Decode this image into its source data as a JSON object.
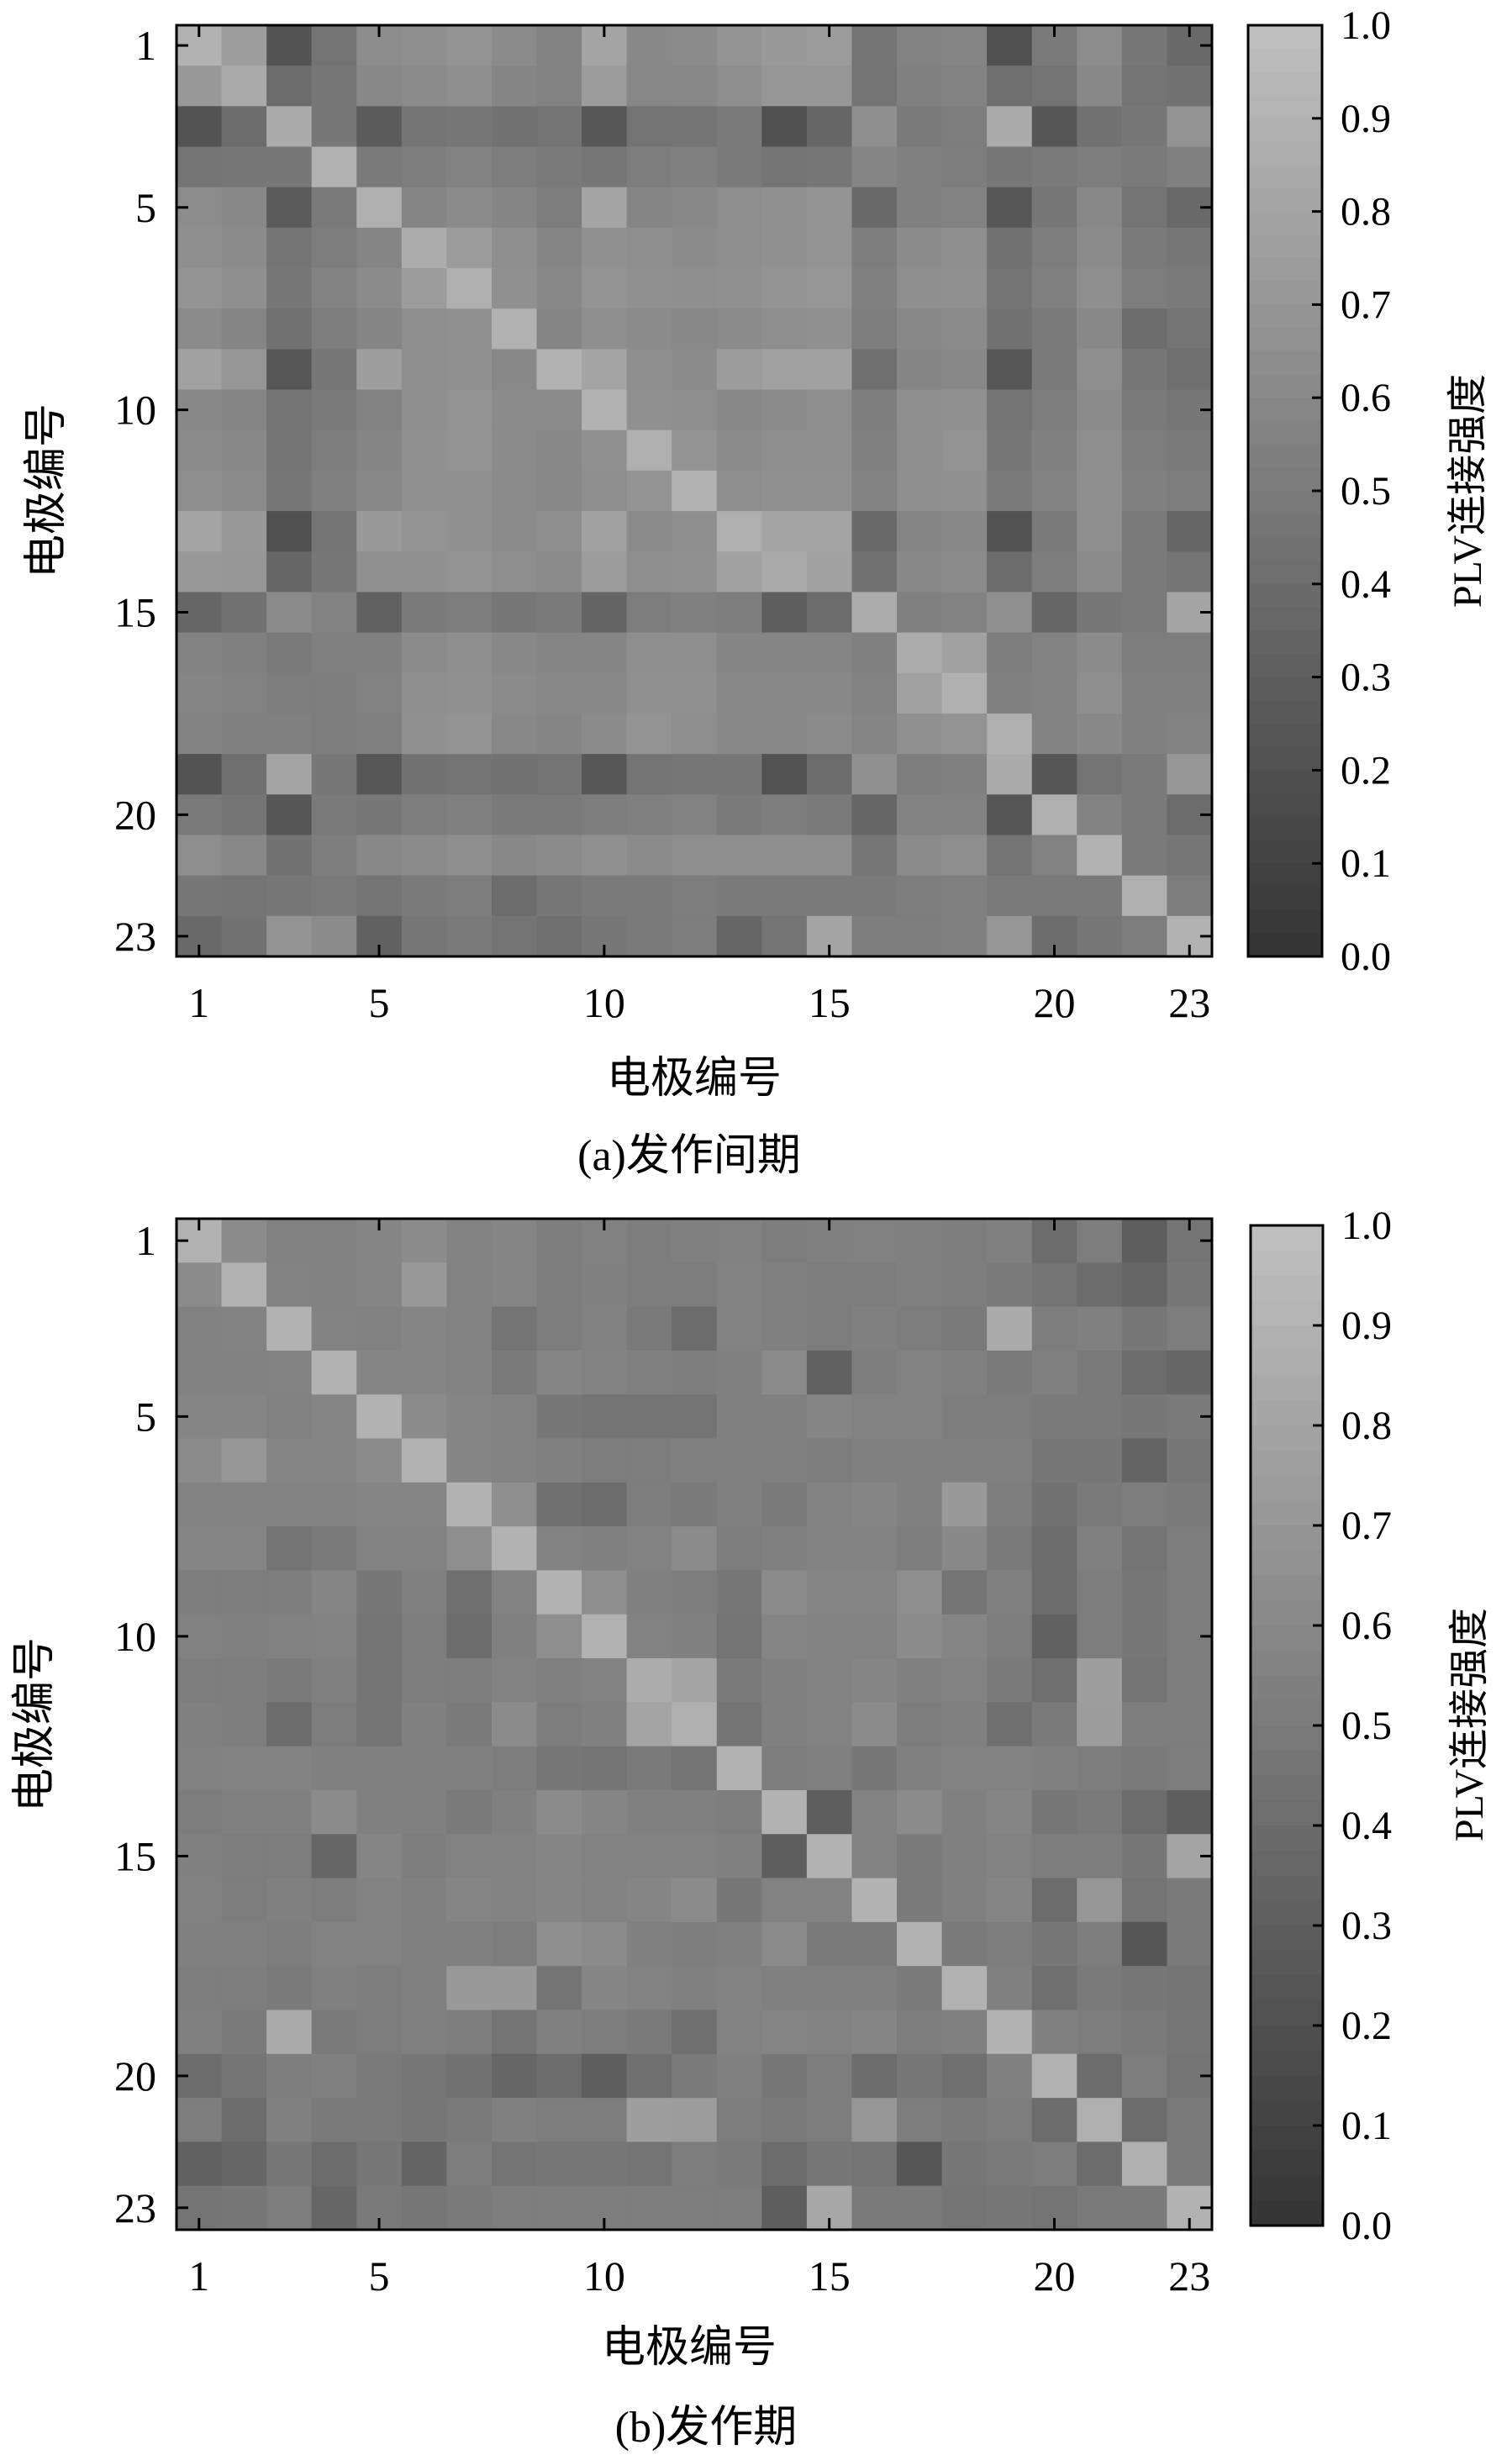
{
  "chart_data": [
    {
      "type": "heatmap",
      "size": 23,
      "xlabel": "电极编号",
      "ylabel": "电极编号",
      "xticks": [
        1,
        5,
        10,
        15,
        20,
        23
      ],
      "yticks": [
        1,
        5,
        10,
        15,
        20,
        23
      ],
      "colorbar": {
        "label": "PLV连接强度",
        "range": [
          0,
          1
        ],
        "ticks": [
          "0.0",
          "0.1",
          "0.2",
          "0.3",
          "0.4",
          "0.5",
          "0.6",
          "0.7",
          "0.8",
          "0.9",
          "1.0"
        ]
      },
      "caption": "(a)发作间期",
      "colormap": "gray",
      "values": [
        [
          0.9,
          0.75,
          0.22,
          0.45,
          0.63,
          0.65,
          0.68,
          0.62,
          0.56,
          0.8,
          0.6,
          0.62,
          0.68,
          0.72,
          0.74,
          0.45,
          0.56,
          0.58,
          0.2,
          0.5,
          0.63,
          0.48,
          0.38
        ],
        [
          0.72,
          0.84,
          0.4,
          0.48,
          0.6,
          0.62,
          0.65,
          0.58,
          0.56,
          0.74,
          0.59,
          0.6,
          0.64,
          0.7,
          0.7,
          0.46,
          0.54,
          0.56,
          0.42,
          0.46,
          0.6,
          0.46,
          0.44
        ],
        [
          0.22,
          0.4,
          0.85,
          0.48,
          0.28,
          0.46,
          0.48,
          0.44,
          0.46,
          0.25,
          0.45,
          0.46,
          0.5,
          0.2,
          0.36,
          0.65,
          0.5,
          0.52,
          0.85,
          0.24,
          0.44,
          0.48,
          0.68
        ],
        [
          0.45,
          0.48,
          0.48,
          0.9,
          0.5,
          0.52,
          0.56,
          0.52,
          0.5,
          0.48,
          0.52,
          0.54,
          0.5,
          0.46,
          0.48,
          0.58,
          0.54,
          0.52,
          0.48,
          0.5,
          0.52,
          0.5,
          0.54
        ],
        [
          0.63,
          0.6,
          0.28,
          0.5,
          0.88,
          0.58,
          0.62,
          0.58,
          0.52,
          0.8,
          0.58,
          0.6,
          0.64,
          0.66,
          0.68,
          0.38,
          0.54,
          0.56,
          0.25,
          0.48,
          0.6,
          0.46,
          0.38
        ],
        [
          0.65,
          0.62,
          0.46,
          0.52,
          0.58,
          0.86,
          0.74,
          0.64,
          0.58,
          0.66,
          0.64,
          0.62,
          0.64,
          0.66,
          0.68,
          0.52,
          0.62,
          0.64,
          0.44,
          0.52,
          0.62,
          0.5,
          0.48
        ],
        [
          0.68,
          0.65,
          0.48,
          0.56,
          0.62,
          0.74,
          0.88,
          0.66,
          0.6,
          0.68,
          0.66,
          0.64,
          0.66,
          0.68,
          0.7,
          0.54,
          0.64,
          0.66,
          0.46,
          0.54,
          0.64,
          0.52,
          0.5
        ],
        [
          0.62,
          0.58,
          0.44,
          0.52,
          0.58,
          0.64,
          0.66,
          0.9,
          0.58,
          0.64,
          0.62,
          0.6,
          0.62,
          0.64,
          0.66,
          0.52,
          0.6,
          0.62,
          0.44,
          0.5,
          0.6,
          0.4,
          0.46
        ],
        [
          0.78,
          0.7,
          0.25,
          0.48,
          0.76,
          0.64,
          0.66,
          0.6,
          0.9,
          0.8,
          0.64,
          0.62,
          0.74,
          0.78,
          0.78,
          0.42,
          0.58,
          0.6,
          0.25,
          0.5,
          0.64,
          0.48,
          0.42
        ],
        [
          0.6,
          0.58,
          0.45,
          0.5,
          0.56,
          0.64,
          0.68,
          0.62,
          0.62,
          0.9,
          0.66,
          0.64,
          0.6,
          0.62,
          0.64,
          0.52,
          0.64,
          0.66,
          0.46,
          0.52,
          0.62,
          0.5,
          0.48
        ],
        [
          0.62,
          0.6,
          0.46,
          0.52,
          0.58,
          0.66,
          0.68,
          0.62,
          0.6,
          0.66,
          0.88,
          0.68,
          0.62,
          0.64,
          0.64,
          0.54,
          0.64,
          0.68,
          0.48,
          0.54,
          0.64,
          0.52,
          0.5
        ],
        [
          0.64,
          0.62,
          0.48,
          0.54,
          0.6,
          0.66,
          0.66,
          0.62,
          0.6,
          0.64,
          0.68,
          0.9,
          0.64,
          0.66,
          0.66,
          0.56,
          0.64,
          0.66,
          0.5,
          0.56,
          0.64,
          0.54,
          0.52
        ],
        [
          0.8,
          0.72,
          0.2,
          0.46,
          0.72,
          0.68,
          0.66,
          0.62,
          0.64,
          0.78,
          0.62,
          0.64,
          0.88,
          0.8,
          0.8,
          0.38,
          0.58,
          0.6,
          0.22,
          0.5,
          0.64,
          0.5,
          0.36
        ],
        [
          0.72,
          0.7,
          0.36,
          0.48,
          0.66,
          0.66,
          0.68,
          0.64,
          0.62,
          0.74,
          0.64,
          0.66,
          0.78,
          0.84,
          0.78,
          0.44,
          0.6,
          0.62,
          0.4,
          0.52,
          0.62,
          0.5,
          0.46
        ],
        [
          0.36,
          0.44,
          0.62,
          0.56,
          0.32,
          0.5,
          0.52,
          0.48,
          0.5,
          0.34,
          0.52,
          0.54,
          0.52,
          0.3,
          0.4,
          0.86,
          0.54,
          0.56,
          0.66,
          0.36,
          0.48,
          0.5,
          0.8
        ],
        [
          0.56,
          0.54,
          0.5,
          0.54,
          0.54,
          0.62,
          0.64,
          0.6,
          0.58,
          0.58,
          0.64,
          0.64,
          0.58,
          0.58,
          0.58,
          0.54,
          0.86,
          0.78,
          0.52,
          0.56,
          0.62,
          0.52,
          0.52
        ],
        [
          0.58,
          0.56,
          0.52,
          0.52,
          0.56,
          0.64,
          0.66,
          0.62,
          0.6,
          0.6,
          0.66,
          0.66,
          0.6,
          0.6,
          0.6,
          0.56,
          0.78,
          0.88,
          0.54,
          0.56,
          0.64,
          0.54,
          0.54
        ],
        [
          0.56,
          0.54,
          0.54,
          0.52,
          0.54,
          0.66,
          0.68,
          0.6,
          0.58,
          0.62,
          0.68,
          0.64,
          0.6,
          0.6,
          0.62,
          0.58,
          0.66,
          0.68,
          0.88,
          0.56,
          0.6,
          0.54,
          0.56
        ],
        [
          0.22,
          0.42,
          0.8,
          0.48,
          0.25,
          0.44,
          0.46,
          0.44,
          0.46,
          0.25,
          0.46,
          0.48,
          0.48,
          0.22,
          0.4,
          0.66,
          0.52,
          0.54,
          0.85,
          0.24,
          0.46,
          0.5,
          0.7
        ],
        [
          0.5,
          0.46,
          0.24,
          0.5,
          0.48,
          0.52,
          0.54,
          0.5,
          0.5,
          0.52,
          0.54,
          0.56,
          0.5,
          0.52,
          0.5,
          0.36,
          0.56,
          0.56,
          0.24,
          0.88,
          0.56,
          0.5,
          0.4
        ],
        [
          0.64,
          0.6,
          0.44,
          0.52,
          0.6,
          0.62,
          0.64,
          0.6,
          0.62,
          0.66,
          0.62,
          0.64,
          0.64,
          0.64,
          0.64,
          0.48,
          0.62,
          0.64,
          0.46,
          0.56,
          0.9,
          0.5,
          0.48
        ],
        [
          0.48,
          0.46,
          0.48,
          0.5,
          0.46,
          0.5,
          0.52,
          0.4,
          0.48,
          0.5,
          0.5,
          0.52,
          0.5,
          0.5,
          0.5,
          0.5,
          0.52,
          0.54,
          0.5,
          0.5,
          0.5,
          0.88,
          0.52
        ],
        [
          0.38,
          0.44,
          0.68,
          0.62,
          0.32,
          0.48,
          0.5,
          0.46,
          0.42,
          0.48,
          0.5,
          0.52,
          0.36,
          0.46,
          0.8,
          0.52,
          0.52,
          0.54,
          0.7,
          0.4,
          0.48,
          0.52,
          0.9
        ]
      ]
    },
    {
      "type": "heatmap",
      "size": 23,
      "xlabel": "电极编号",
      "ylabel": "电极编号",
      "xticks": [
        1,
        5,
        10,
        15,
        20,
        23
      ],
      "yticks": [
        1,
        5,
        10,
        15,
        20,
        23
      ],
      "colorbar": {
        "label": "PLV连接强度",
        "range": [
          0,
          1
        ],
        "ticks": [
          "0.0",
          "0.1",
          "0.2",
          "0.3",
          "0.4",
          "0.5",
          "0.6",
          "0.7",
          "0.8",
          "0.9",
          "1.0"
        ]
      },
      "caption": "(b)发作期",
      "colormap": "gray",
      "values": [
        [
          0.9,
          0.62,
          0.55,
          0.55,
          0.58,
          0.62,
          0.56,
          0.58,
          0.52,
          0.55,
          0.52,
          0.54,
          0.55,
          0.52,
          0.54,
          0.55,
          0.54,
          0.52,
          0.54,
          0.4,
          0.52,
          0.3,
          0.46
        ],
        [
          0.62,
          0.9,
          0.56,
          0.55,
          0.58,
          0.72,
          0.56,
          0.58,
          0.52,
          0.54,
          0.52,
          0.52,
          0.56,
          0.54,
          0.52,
          0.52,
          0.54,
          0.52,
          0.5,
          0.46,
          0.4,
          0.36,
          0.48
        ],
        [
          0.55,
          0.56,
          0.9,
          0.56,
          0.55,
          0.58,
          0.56,
          0.46,
          0.52,
          0.55,
          0.5,
          0.4,
          0.56,
          0.54,
          0.52,
          0.54,
          0.52,
          0.5,
          0.85,
          0.52,
          0.54,
          0.48,
          0.52
        ],
        [
          0.55,
          0.55,
          0.56,
          0.9,
          0.58,
          0.58,
          0.56,
          0.5,
          0.58,
          0.56,
          0.54,
          0.52,
          0.54,
          0.62,
          0.32,
          0.52,
          0.56,
          0.54,
          0.5,
          0.54,
          0.5,
          0.4,
          0.36
        ],
        [
          0.58,
          0.58,
          0.55,
          0.58,
          0.9,
          0.62,
          0.58,
          0.56,
          0.48,
          0.46,
          0.46,
          0.46,
          0.54,
          0.54,
          0.58,
          0.56,
          0.56,
          0.52,
          0.52,
          0.5,
          0.5,
          0.48,
          0.5
        ],
        [
          0.62,
          0.7,
          0.58,
          0.58,
          0.62,
          0.9,
          0.58,
          0.56,
          0.54,
          0.52,
          0.52,
          0.54,
          0.54,
          0.54,
          0.52,
          0.54,
          0.54,
          0.54,
          0.54,
          0.48,
          0.48,
          0.34,
          0.48
        ],
        [
          0.56,
          0.56,
          0.56,
          0.56,
          0.58,
          0.58,
          0.9,
          0.64,
          0.42,
          0.4,
          0.52,
          0.5,
          0.54,
          0.5,
          0.56,
          0.58,
          0.54,
          0.72,
          0.52,
          0.44,
          0.5,
          0.52,
          0.5
        ],
        [
          0.58,
          0.58,
          0.46,
          0.5,
          0.56,
          0.56,
          0.64,
          0.9,
          0.56,
          0.54,
          0.56,
          0.62,
          0.52,
          0.54,
          0.56,
          0.56,
          0.52,
          0.6,
          0.5,
          0.4,
          0.54,
          0.46,
          0.52
        ],
        [
          0.52,
          0.52,
          0.52,
          0.58,
          0.48,
          0.54,
          0.42,
          0.56,
          0.9,
          0.64,
          0.54,
          0.52,
          0.48,
          0.62,
          0.58,
          0.58,
          0.64,
          0.46,
          0.54,
          0.4,
          0.52,
          0.48,
          0.52
        ],
        [
          0.55,
          0.54,
          0.55,
          0.56,
          0.46,
          0.52,
          0.4,
          0.54,
          0.64,
          0.9,
          0.56,
          0.54,
          0.46,
          0.58,
          0.56,
          0.56,
          0.62,
          0.58,
          0.52,
          0.32,
          0.52,
          0.48,
          0.52
        ],
        [
          0.52,
          0.52,
          0.5,
          0.54,
          0.46,
          0.52,
          0.52,
          0.56,
          0.54,
          0.56,
          0.86,
          0.8,
          0.5,
          0.54,
          0.56,
          0.58,
          0.54,
          0.56,
          0.5,
          0.42,
          0.76,
          0.46,
          0.52
        ],
        [
          0.54,
          0.52,
          0.4,
          0.52,
          0.46,
          0.54,
          0.5,
          0.62,
          0.52,
          0.54,
          0.8,
          0.88,
          0.46,
          0.54,
          0.56,
          0.62,
          0.52,
          0.54,
          0.42,
          0.5,
          0.74,
          0.52,
          0.52
        ],
        [
          0.55,
          0.56,
          0.56,
          0.54,
          0.54,
          0.54,
          0.54,
          0.52,
          0.48,
          0.46,
          0.5,
          0.46,
          0.9,
          0.52,
          0.54,
          0.48,
          0.54,
          0.56,
          0.56,
          0.54,
          0.52,
          0.5,
          0.52
        ],
        [
          0.52,
          0.54,
          0.54,
          0.62,
          0.54,
          0.54,
          0.5,
          0.54,
          0.62,
          0.58,
          0.54,
          0.54,
          0.52,
          0.9,
          0.3,
          0.56,
          0.62,
          0.54,
          0.58,
          0.48,
          0.5,
          0.4,
          0.3
        ],
        [
          0.54,
          0.52,
          0.52,
          0.36,
          0.58,
          0.52,
          0.56,
          0.56,
          0.58,
          0.56,
          0.56,
          0.56,
          0.54,
          0.3,
          0.9,
          0.56,
          0.5,
          0.54,
          0.56,
          0.52,
          0.52,
          0.48,
          0.8
        ],
        [
          0.55,
          0.52,
          0.54,
          0.52,
          0.56,
          0.54,
          0.58,
          0.56,
          0.58,
          0.56,
          0.58,
          0.62,
          0.48,
          0.56,
          0.56,
          0.9,
          0.5,
          0.54,
          0.58,
          0.4,
          0.7,
          0.46,
          0.5
        ],
        [
          0.54,
          0.54,
          0.52,
          0.56,
          0.56,
          0.54,
          0.54,
          0.52,
          0.64,
          0.62,
          0.54,
          0.52,
          0.54,
          0.62,
          0.5,
          0.5,
          0.9,
          0.5,
          0.52,
          0.48,
          0.52,
          0.24,
          0.5
        ],
        [
          0.52,
          0.52,
          0.5,
          0.54,
          0.52,
          0.54,
          0.72,
          0.72,
          0.46,
          0.58,
          0.56,
          0.54,
          0.56,
          0.54,
          0.54,
          0.54,
          0.5,
          0.9,
          0.54,
          0.42,
          0.5,
          0.48,
          0.46
        ],
        [
          0.54,
          0.5,
          0.85,
          0.5,
          0.52,
          0.54,
          0.52,
          0.46,
          0.54,
          0.52,
          0.5,
          0.42,
          0.56,
          0.58,
          0.56,
          0.58,
          0.52,
          0.54,
          0.9,
          0.54,
          0.52,
          0.5,
          0.48
        ],
        [
          0.4,
          0.46,
          0.52,
          0.54,
          0.5,
          0.48,
          0.44,
          0.36,
          0.4,
          0.3,
          0.42,
          0.5,
          0.54,
          0.48,
          0.52,
          0.4,
          0.48,
          0.42,
          0.54,
          0.9,
          0.4,
          0.52,
          0.46
        ],
        [
          0.52,
          0.4,
          0.54,
          0.5,
          0.5,
          0.48,
          0.5,
          0.54,
          0.52,
          0.52,
          0.76,
          0.74,
          0.52,
          0.5,
          0.52,
          0.7,
          0.52,
          0.5,
          0.52,
          0.4,
          0.88,
          0.4,
          0.5
        ],
        [
          0.32,
          0.36,
          0.48,
          0.4,
          0.48,
          0.34,
          0.52,
          0.46,
          0.48,
          0.48,
          0.46,
          0.52,
          0.5,
          0.4,
          0.48,
          0.46,
          0.24,
          0.48,
          0.5,
          0.52,
          0.4,
          0.88,
          0.5
        ],
        [
          0.46,
          0.48,
          0.52,
          0.36,
          0.5,
          0.48,
          0.5,
          0.52,
          0.52,
          0.52,
          0.52,
          0.52,
          0.52,
          0.3,
          0.82,
          0.5,
          0.5,
          0.46,
          0.48,
          0.46,
          0.5,
          0.5,
          0.9
        ]
      ]
    }
  ]
}
